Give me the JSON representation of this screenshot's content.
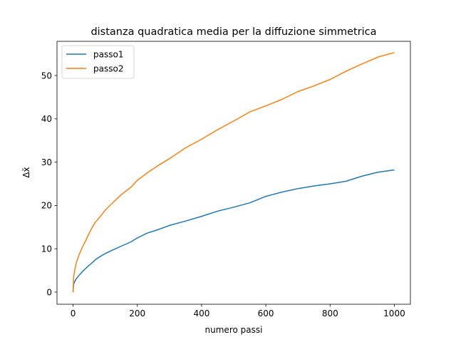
{
  "chart_data": {
    "type": "line",
    "title": "distanza quadratica media per la diffuzione simmetrica",
    "xlabel": "numero passi",
    "ylabel": "Δx̄",
    "xlim": [
      -50,
      1050
    ],
    "ylim": [
      -2.8,
      57.9
    ],
    "x_ticks": [
      0,
      200,
      400,
      600,
      800,
      1000
    ],
    "y_ticks": [
      0,
      10,
      20,
      30,
      40,
      50
    ],
    "grid": false,
    "legend_position": "upper-left",
    "series": [
      {
        "name": "passo1",
        "color": "#1f77b4",
        "x": [
          0,
          2,
          5,
          10,
          20,
          30,
          40,
          50,
          60,
          70,
          80,
          100,
          120,
          150,
          180,
          200,
          230,
          260,
          300,
          350,
          400,
          450,
          500,
          550,
          600,
          650,
          700,
          750,
          800,
          850,
          900,
          950,
          1000
        ],
        "y": [
          0,
          1.8,
          2.4,
          3.1,
          4.0,
          4.8,
          5.5,
          6.2,
          6.8,
          7.5,
          8.0,
          8.9,
          9.6,
          10.6,
          11.6,
          12.5,
          13.6,
          14.3,
          15.4,
          16.4,
          17.5,
          18.7,
          19.6,
          20.6,
          22.1,
          23.1,
          23.9,
          24.5,
          25.0,
          25.6,
          26.8,
          27.7,
          28.2
        ]
      },
      {
        "name": "passo2",
        "color": "#ff7f0e",
        "x": [
          0,
          2,
          5,
          10,
          20,
          30,
          40,
          50,
          60,
          70,
          80,
          100,
          120,
          150,
          180,
          200,
          230,
          260,
          300,
          350,
          400,
          450,
          500,
          550,
          600,
          650,
          700,
          750,
          800,
          850,
          900,
          950,
          1000
        ],
        "y": [
          0,
          3.5,
          5.0,
          6.8,
          8.9,
          10.5,
          12.0,
          13.6,
          15.0,
          16.2,
          17.0,
          18.9,
          20.4,
          22.5,
          24.2,
          25.8,
          27.5,
          29.0,
          30.8,
          33.3,
          35.3,
          37.5,
          39.5,
          41.6,
          43.0,
          44.5,
          46.3,
          47.6,
          49.1,
          51.0,
          52.7,
          54.3,
          55.3
        ]
      }
    ]
  }
}
